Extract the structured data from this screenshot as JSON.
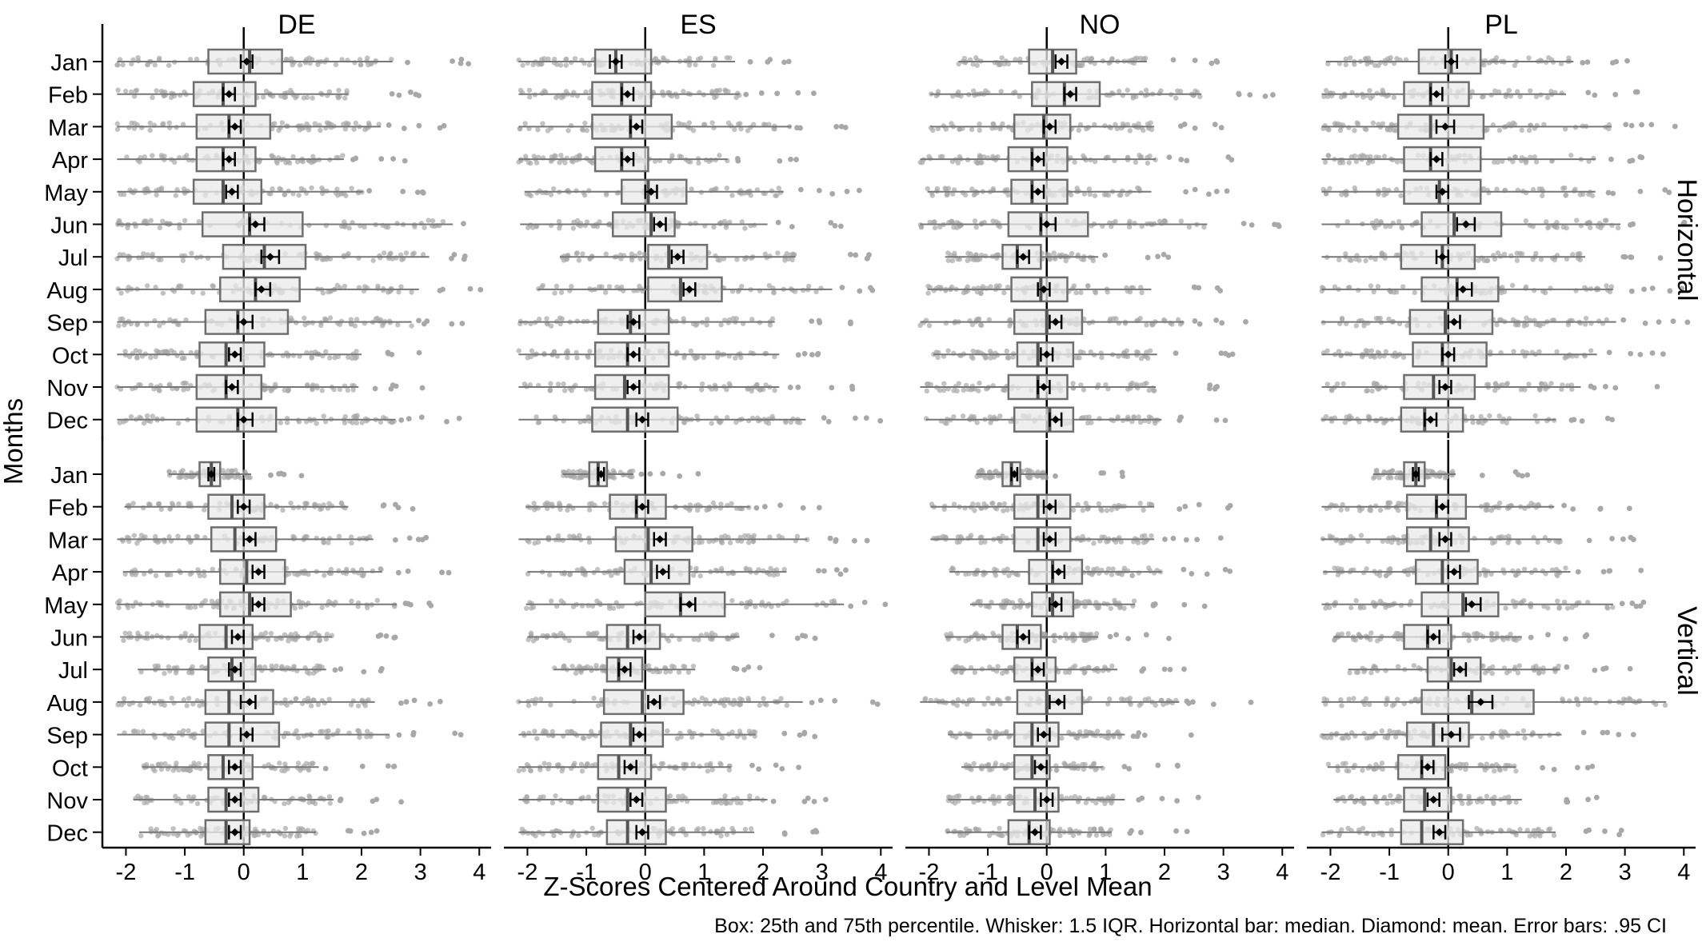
{
  "chart_data": {
    "type": "boxplot",
    "xlabel": "Z-Scores Centered Around Country and Level Mean",
    "ylabel": "Months",
    "caption": "Box: 25th and 75th percentile. Whisker: 1.5 IQR. Horizontal bar: median. Diamond: mean. Error bars: .95 CI",
    "xlim": [
      -2.4,
      4.2
    ],
    "xticks": [
      "-2",
      "-1",
      "0",
      "1",
      "2",
      "3",
      "4"
    ],
    "countries": [
      "DE",
      "ES",
      "NO",
      "PL"
    ],
    "levels": [
      "Horizontal",
      "Vertical"
    ],
    "months": [
      "Jan",
      "Feb",
      "Mar",
      "Apr",
      "May",
      "Jun",
      "Jul",
      "Aug",
      "Sep",
      "Oct",
      "Nov",
      "Dec"
    ],
    "reference_line_x": 0,
    "colors": {
      "box_fill": "#e9e9e9",
      "box_stroke": "#6e6e6e",
      "points": "#a8a8a8",
      "mean": "#000000"
    },
    "grid": false,
    "stats_order": [
      "q1",
      "median",
      "q3",
      "mean",
      "ci_low",
      "ci_high"
    ],
    "boxes": {
      "Horizontal": {
        "DE": [
          [
            -0.6,
            0.1,
            0.65,
            0.05,
            -0.05,
            0.15
          ],
          [
            -0.85,
            -0.35,
            0.2,
            -0.25,
            -0.35,
            -0.15
          ],
          [
            -0.8,
            -0.25,
            0.45,
            -0.15,
            -0.25,
            -0.05
          ],
          [
            -0.8,
            -0.35,
            0.2,
            -0.25,
            -0.35,
            -0.15
          ],
          [
            -0.85,
            -0.35,
            0.3,
            -0.2,
            -0.3,
            -0.1
          ],
          [
            -0.7,
            0.1,
            1.0,
            0.2,
            0.1,
            0.35
          ],
          [
            -0.35,
            0.35,
            1.05,
            0.45,
            0.3,
            0.6
          ],
          [
            -0.4,
            0.2,
            0.95,
            0.3,
            0.2,
            0.45
          ],
          [
            -0.65,
            -0.1,
            0.75,
            0.0,
            -0.1,
            0.15
          ],
          [
            -0.75,
            -0.3,
            0.35,
            -0.15,
            -0.25,
            -0.05
          ],
          [
            -0.8,
            -0.3,
            0.3,
            -0.2,
            -0.3,
            -0.1
          ],
          [
            -0.8,
            -0.1,
            0.55,
            0.0,
            -0.1,
            0.15
          ]
        ],
        "ES": [
          [
            -0.85,
            -0.5,
            0.1,
            -0.5,
            -0.6,
            -0.4
          ],
          [
            -0.9,
            -0.4,
            0.1,
            -0.3,
            -0.4,
            -0.2
          ],
          [
            -0.9,
            -0.25,
            0.45,
            -0.15,
            -0.25,
            -0.05
          ],
          [
            -0.85,
            -0.4,
            0.05,
            -0.3,
            -0.4,
            -0.2
          ],
          [
            -0.4,
            0.05,
            0.7,
            0.1,
            0.0,
            0.2
          ],
          [
            -0.55,
            0.1,
            0.5,
            0.25,
            0.15,
            0.35
          ],
          [
            0.05,
            0.4,
            1.05,
            0.55,
            0.45,
            0.65
          ],
          [
            0.05,
            0.6,
            1.3,
            0.75,
            0.65,
            0.85
          ],
          [
            -0.8,
            -0.25,
            0.4,
            -0.2,
            -0.3,
            -0.1
          ],
          [
            -0.85,
            -0.3,
            0.4,
            -0.2,
            -0.3,
            -0.1
          ],
          [
            -0.85,
            -0.35,
            0.4,
            -0.2,
            -0.3,
            -0.1
          ],
          [
            -0.9,
            -0.3,
            0.55,
            -0.05,
            -0.15,
            0.05
          ]
        ],
        "NO": [
          [
            -0.3,
            0.1,
            0.5,
            0.25,
            0.15,
            0.35
          ],
          [
            -0.25,
            0.3,
            0.9,
            0.4,
            0.3,
            0.5
          ],
          [
            -0.55,
            -0.05,
            0.4,
            0.05,
            -0.05,
            0.15
          ],
          [
            -0.65,
            -0.25,
            0.35,
            -0.15,
            -0.25,
            -0.05
          ],
          [
            -0.6,
            -0.25,
            0.35,
            -0.15,
            -0.25,
            -0.05
          ],
          [
            -0.65,
            -0.1,
            0.7,
            0.0,
            -0.1,
            0.15
          ],
          [
            -0.75,
            -0.5,
            -0.1,
            -0.4,
            -0.5,
            -0.3
          ],
          [
            -0.6,
            -0.1,
            0.35,
            -0.05,
            -0.15,
            0.05
          ],
          [
            -0.55,
            0.0,
            0.6,
            0.15,
            0.05,
            0.25
          ],
          [
            -0.5,
            -0.15,
            0.45,
            0.0,
            -0.1,
            0.1
          ],
          [
            -0.65,
            -0.15,
            0.35,
            -0.05,
            -0.15,
            0.05
          ],
          [
            -0.55,
            0.05,
            0.45,
            0.15,
            0.05,
            0.25
          ]
        ],
        "PL": [
          [
            -0.5,
            0.05,
            0.55,
            0.05,
            -0.05,
            0.15
          ],
          [
            -0.75,
            -0.3,
            0.35,
            -0.2,
            -0.3,
            -0.1
          ],
          [
            -0.85,
            -0.3,
            0.6,
            -0.05,
            -0.2,
            0.1
          ],
          [
            -0.75,
            -0.3,
            0.55,
            -0.2,
            -0.3,
            -0.1
          ],
          [
            -0.75,
            -0.15,
            0.55,
            -0.1,
            -0.2,
            0.0
          ],
          [
            -0.45,
            0.1,
            0.9,
            0.3,
            0.15,
            0.45
          ],
          [
            -0.8,
            -0.1,
            0.45,
            -0.1,
            -0.2,
            0.0
          ],
          [
            -0.45,
            0.15,
            0.85,
            0.25,
            0.15,
            0.4
          ],
          [
            -0.65,
            -0.05,
            0.75,
            0.1,
            0.0,
            0.2
          ],
          [
            -0.6,
            -0.1,
            0.65,
            0.0,
            -0.1,
            0.1
          ],
          [
            -0.75,
            -0.25,
            0.45,
            -0.05,
            -0.15,
            0.05
          ],
          [
            -0.8,
            -0.4,
            0.25,
            -0.3,
            -0.4,
            -0.2
          ]
        ]
      },
      "Vertical": {
        "DE": [
          [
            -0.75,
            -0.55,
            -0.4,
            -0.55,
            -0.6,
            -0.5
          ],
          [
            -0.6,
            -0.2,
            0.35,
            0.0,
            -0.1,
            0.1
          ],
          [
            -0.55,
            -0.15,
            0.55,
            0.1,
            0.0,
            0.2
          ],
          [
            -0.4,
            0.05,
            0.7,
            0.25,
            0.15,
            0.35
          ],
          [
            -0.4,
            0.1,
            0.8,
            0.25,
            0.15,
            0.35
          ],
          [
            -0.75,
            -0.3,
            0.15,
            -0.1,
            -0.2,
            0.0
          ],
          [
            -0.6,
            -0.2,
            0.2,
            -0.15,
            -0.25,
            -0.05
          ],
          [
            -0.65,
            -0.25,
            0.5,
            0.1,
            -0.05,
            0.2
          ],
          [
            -0.65,
            -0.25,
            0.6,
            0.05,
            -0.05,
            0.15
          ],
          [
            -0.6,
            -0.35,
            0.15,
            -0.15,
            -0.25,
            -0.05
          ],
          [
            -0.6,
            -0.3,
            0.25,
            -0.15,
            -0.25,
            -0.05
          ],
          [
            -0.65,
            -0.3,
            0.1,
            -0.15,
            -0.25,
            -0.05
          ]
        ],
        "ES": [
          [
            -0.95,
            -0.8,
            -0.65,
            -0.75,
            -0.8,
            -0.7
          ],
          [
            -0.6,
            -0.15,
            0.35,
            -0.05,
            -0.15,
            0.05
          ],
          [
            -0.5,
            0.05,
            0.8,
            0.25,
            0.15,
            0.35
          ],
          [
            -0.35,
            0.1,
            0.75,
            0.3,
            0.2,
            0.4
          ],
          [
            0.0,
            0.6,
            1.35,
            0.75,
            0.6,
            0.85
          ],
          [
            -0.65,
            -0.3,
            0.25,
            -0.1,
            -0.2,
            0.0
          ],
          [
            -0.65,
            -0.45,
            -0.05,
            -0.35,
            -0.45,
            -0.25
          ],
          [
            -0.7,
            -0.05,
            0.65,
            0.15,
            0.05,
            0.25
          ],
          [
            -0.75,
            -0.25,
            0.3,
            -0.1,
            -0.2,
            0.0
          ],
          [
            -0.8,
            -0.45,
            0.1,
            -0.25,
            -0.35,
            -0.15
          ],
          [
            -0.8,
            -0.3,
            0.35,
            -0.15,
            -0.25,
            -0.05
          ],
          [
            -0.65,
            -0.3,
            0.35,
            -0.05,
            -0.15,
            0.05
          ]
        ],
        "NO": [
          [
            -0.75,
            -0.6,
            -0.45,
            -0.55,
            -0.6,
            -0.5
          ],
          [
            -0.55,
            -0.15,
            0.4,
            0.05,
            -0.05,
            0.15
          ],
          [
            -0.55,
            -0.15,
            0.4,
            0.05,
            -0.05,
            0.15
          ],
          [
            -0.3,
            0.1,
            0.6,
            0.2,
            0.1,
            0.3
          ],
          [
            -0.25,
            0.1,
            0.45,
            0.15,
            0.05,
            0.25
          ],
          [
            -0.75,
            -0.5,
            -0.1,
            -0.4,
            -0.5,
            -0.3
          ],
          [
            -0.55,
            -0.25,
            0.15,
            -0.15,
            -0.25,
            -0.05
          ],
          [
            -0.5,
            0.0,
            0.6,
            0.2,
            0.05,
            0.3
          ],
          [
            -0.55,
            -0.25,
            0.2,
            -0.05,
            -0.15,
            0.05
          ],
          [
            -0.55,
            -0.25,
            0.05,
            -0.1,
            -0.2,
            0.0
          ],
          [
            -0.55,
            -0.2,
            0.2,
            0.0,
            -0.1,
            0.1
          ],
          [
            -0.65,
            -0.3,
            0.05,
            -0.2,
            -0.3,
            -0.1
          ]
        ],
        "PL": [
          [
            -0.75,
            -0.55,
            -0.4,
            -0.55,
            -0.6,
            -0.5
          ],
          [
            -0.7,
            -0.2,
            0.3,
            -0.1,
            -0.2,
            0.0
          ],
          [
            -0.7,
            -0.3,
            0.35,
            -0.05,
            -0.15,
            0.05
          ],
          [
            -0.55,
            -0.1,
            0.5,
            0.1,
            0.0,
            0.2
          ],
          [
            -0.45,
            0.25,
            0.85,
            0.4,
            0.3,
            0.55
          ],
          [
            -0.75,
            -0.35,
            0.05,
            -0.25,
            -0.35,
            -0.15
          ],
          [
            -0.35,
            0.05,
            0.55,
            0.2,
            0.1,
            0.3
          ],
          [
            -0.45,
            0.4,
            1.45,
            0.55,
            0.35,
            0.75
          ],
          [
            -0.7,
            -0.25,
            0.35,
            0.05,
            -0.1,
            0.2
          ],
          [
            -0.85,
            -0.45,
            -0.05,
            -0.35,
            -0.45,
            -0.25
          ],
          [
            -0.75,
            -0.4,
            0.05,
            -0.25,
            -0.35,
            -0.15
          ],
          [
            -0.8,
            -0.45,
            0.25,
            -0.15,
            -0.25,
            -0.05
          ]
        ]
      }
    }
  }
}
